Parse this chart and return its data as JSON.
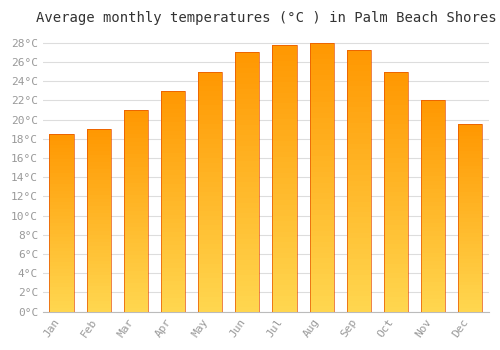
{
  "title": "Average monthly temperatures (°C ) in Palm Beach Shores",
  "months": [
    "Jan",
    "Feb",
    "Mar",
    "Apr",
    "May",
    "Jun",
    "Jul",
    "Aug",
    "Sep",
    "Oct",
    "Nov",
    "Dec"
  ],
  "values": [
    18.5,
    19.0,
    21.0,
    23.0,
    25.0,
    27.0,
    27.8,
    28.0,
    27.3,
    25.0,
    22.0,
    19.5
  ],
  "bar_color": "#FFA726",
  "bar_edge_color": "#E65100",
  "ylim": [
    0,
    29
  ],
  "ytick_step": 2,
  "background_color": "#FFFFFF",
  "grid_color": "#DDDDDD",
  "title_fontsize": 10,
  "tick_fontsize": 8,
  "tick_color": "#999999",
  "title_color": "#333333",
  "font_family": "monospace",
  "bar_width": 0.65
}
